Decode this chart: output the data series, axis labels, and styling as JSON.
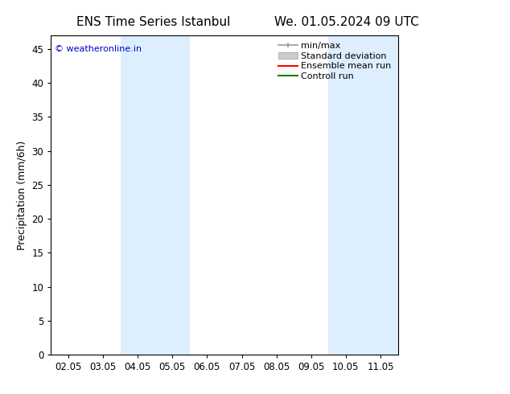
{
  "title_left": "ENS Time Series Istanbul",
  "title_right": "We. 01.05.2024 09 UTC",
  "ylabel": "Precipitation (mm/6h)",
  "xlabel": "",
  "ylim": [
    0,
    47
  ],
  "yticks": [
    0,
    5,
    10,
    15,
    20,
    25,
    30,
    35,
    40,
    45
  ],
  "xtick_labels": [
    "02.05",
    "03.05",
    "04.05",
    "05.05",
    "06.05",
    "07.05",
    "08.05",
    "09.05",
    "10.05",
    "11.05"
  ],
  "xtick_positions": [
    0,
    1,
    2,
    3,
    4,
    5,
    6,
    7,
    8,
    9
  ],
  "xlim_min": -0.5,
  "xlim_max": 9.5,
  "background_color": "#ffffff",
  "plot_background": "#ffffff",
  "band_color": "#ddeeff",
  "bands": [
    {
      "x_start": 1.5,
      "x_end": 2.5
    },
    {
      "x_start": 2.5,
      "x_end": 3.5
    },
    {
      "x_start": 7.5,
      "x_end": 8.5
    },
    {
      "x_start": 8.5,
      "x_end": 9.5
    }
  ],
  "watermark": "© weatheronline.in",
  "watermark_color": "#0000cc",
  "title_fontsize": 11,
  "ylabel_fontsize": 9,
  "tick_fontsize": 8.5,
  "legend_fontsize": 8,
  "legend_entries": [
    {
      "label": "min/max",
      "type": "errorbar",
      "color": "#999999"
    },
    {
      "label": "Standard deviation",
      "type": "patch",
      "color": "#cccccc"
    },
    {
      "label": "Ensemble mean run",
      "type": "line",
      "color": "#ff0000"
    },
    {
      "label": "Controll run",
      "type": "line",
      "color": "#008000"
    }
  ]
}
